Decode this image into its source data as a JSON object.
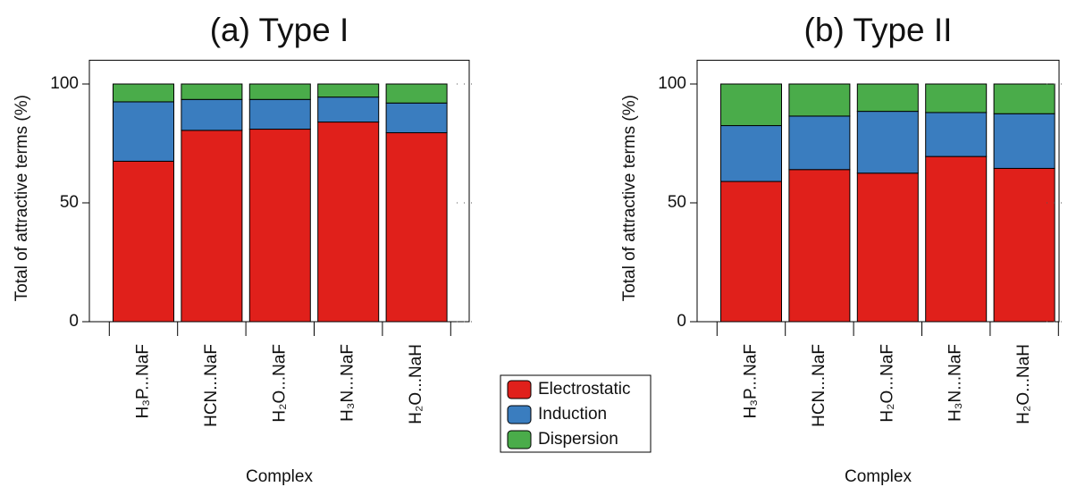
{
  "chart_data": [
    {
      "type": "stacked-bar",
      "title": "(a) Type I",
      "xlabel": "Complex",
      "ylabel": "Total of attractive terms (%)",
      "categories": [
        "H₃P...NaF",
        "HCN...NaF",
        "H₂O...NaF",
        "H₃N...NaF",
        "H₂O...NaH"
      ],
      "ylim": [
        0,
        110
      ],
      "yticks": [
        0,
        50,
        100
      ],
      "series": [
        {
          "name": "Electrostatic",
          "color": "#e0201b",
          "values": [
            67.5,
            80.5,
            81,
            84,
            79.5
          ]
        },
        {
          "name": "Induction",
          "color": "#3a7dbf",
          "values": [
            25,
            13,
            12.5,
            10.5,
            12.5
          ]
        },
        {
          "name": "Dispersion",
          "color": "#4aac4a",
          "values": [
            7.5,
            6.5,
            6.5,
            5.5,
            8
          ]
        }
      ]
    },
    {
      "type": "stacked-bar",
      "title": "(b) Type II",
      "xlabel": "Complex",
      "ylabel": "Total of attractive terms (%)",
      "categories": [
        "H₃P...NaF",
        "HCN...NaF",
        "H₂O...NaF",
        "H₃N...NaF",
        "H₂O...NaH"
      ],
      "ylim": [
        0,
        110
      ],
      "yticks": [
        0,
        50,
        100
      ],
      "series": [
        {
          "values": [
            59,
            64,
            62.5,
            69.5,
            64.5
          ]
        },
        {
          "values": [
            23.5,
            22.5,
            26,
            18.5,
            23
          ]
        },
        {
          "values": [
            17.5,
            13.5,
            11.5,
            12,
            12.5
          ]
        }
      ]
    }
  ]
}
